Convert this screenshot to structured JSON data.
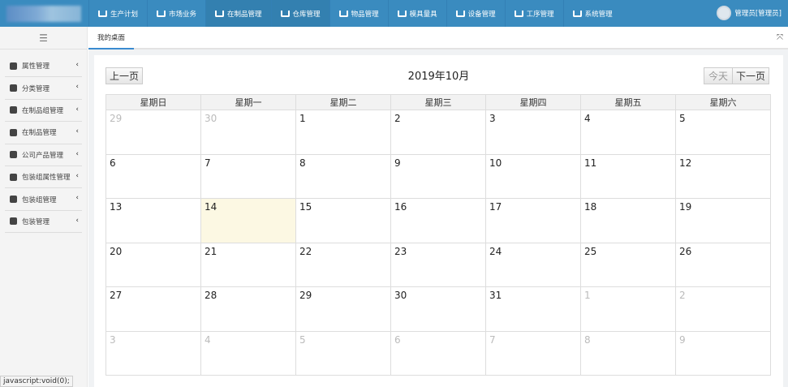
{
  "header": {
    "nav": [
      {
        "label": "生产计划",
        "active": false
      },
      {
        "label": "市场业务",
        "active": false
      },
      {
        "label": "在制品管理",
        "active": true
      },
      {
        "label": "仓库管理",
        "active": true
      },
      {
        "label": "物品管理",
        "active": false
      },
      {
        "label": "模具量具",
        "active": false
      },
      {
        "label": "设备管理",
        "active": false
      },
      {
        "label": "工序管理",
        "active": false
      },
      {
        "label": "系统管理",
        "active": false,
        "icon": "box-icon"
      }
    ],
    "user": "管理员[管理员]"
  },
  "sidebar": {
    "items": [
      "属性管理",
      "分类管理",
      "在制品组管理",
      "在制品管理",
      "公司产品管理",
      "包装组属性管理",
      "包装组管理",
      "包装管理"
    ]
  },
  "tabs": [
    "我的桌面"
  ],
  "calendar": {
    "title": "2019年10月",
    "prev": "上一页",
    "today": "今天",
    "next": "下一页",
    "weekdays": [
      "星期日",
      "星期一",
      "星期二",
      "星期三",
      "星期四",
      "星期五",
      "星期六"
    ],
    "weeks": [
      [
        "29",
        "30",
        "1",
        "2",
        "3",
        "4",
        "5"
      ],
      [
        "6",
        "7",
        "8",
        "9",
        "10",
        "11",
        "12"
      ],
      [
        "13",
        "14",
        "15",
        "16",
        "17",
        "18",
        "19"
      ],
      [
        "20",
        "21",
        "22",
        "23",
        "24",
        "25",
        "26"
      ],
      [
        "27",
        "28",
        "29",
        "30",
        "31",
        "1",
        "2"
      ],
      [
        "3",
        "4",
        "5",
        "6",
        "7",
        "8",
        "9"
      ]
    ],
    "today_cell": "14"
  },
  "status_bar": "javascript:void(0);"
}
